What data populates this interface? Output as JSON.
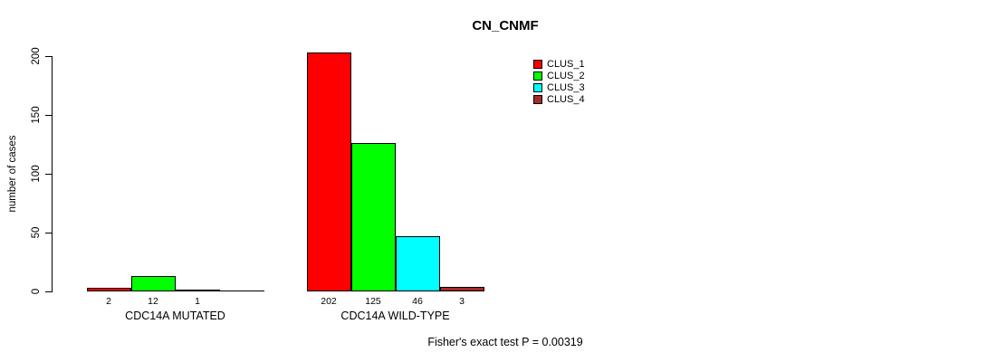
{
  "title": "CN_CNMF",
  "y_axis_label": "number of cases",
  "footer_note": "Fisher's exact test P = 0.00319",
  "chart_data": {
    "type": "bar",
    "title": "CN_CNMF",
    "xlabel": "",
    "ylabel": "number of cases",
    "categories": [
      "CDC14A MUTATED",
      "CDC14A WILD-TYPE"
    ],
    "series": [
      {
        "name": "CLUS_1",
        "color": "#FF0000",
        "values": [
          2,
          202
        ]
      },
      {
        "name": "CLUS_2",
        "color": "#00FF00",
        "values": [
          12,
          125
        ]
      },
      {
        "name": "CLUS_3",
        "color": "#00FFFF",
        "values": [
          1,
          46
        ]
      },
      {
        "name": "CLUS_4",
        "color": "#A52A2A",
        "values": [
          0,
          3
        ]
      }
    ],
    "bar_value_labels": [
      [
        "2",
        "12",
        "1",
        ""
      ],
      [
        "202",
        "125",
        "46",
        "3"
      ]
    ],
    "yticks": [
      0,
      50,
      100,
      150,
      200
    ],
    "ylim": [
      0,
      210
    ],
    "grid": false,
    "legend_position": "top-right",
    "legend": [
      "CLUS_1",
      "CLUS_2",
      "CLUS_3",
      "CLUS_4"
    ],
    "annotation": "Fisher's exact test P = 0.00319"
  }
}
